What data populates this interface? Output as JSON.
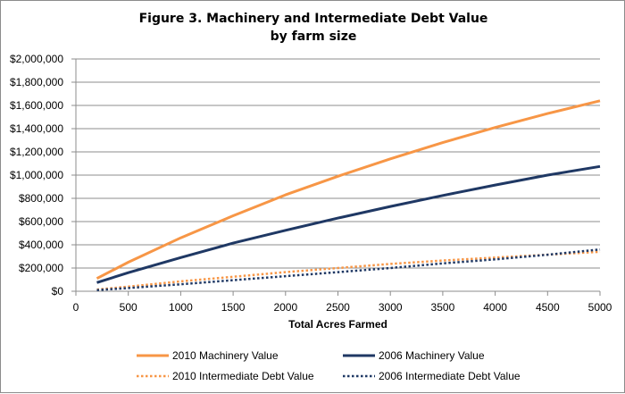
{
  "chart_data": {
    "type": "line",
    "title_line1": "Figure 3. Machinery and Intermediate Debt Value",
    "title_line2": "by farm size",
    "xlabel": "Total Acres Farmed",
    "ylabel": "",
    "xlim": [
      0,
      5000
    ],
    "ylim": [
      0,
      2000000
    ],
    "x_ticks": [
      0,
      500,
      1000,
      1500,
      2000,
      2500,
      3000,
      3500,
      4000,
      4500,
      5000
    ],
    "y_ticks": [
      0,
      200000,
      400000,
      600000,
      800000,
      1000000,
      1200000,
      1400000,
      1600000,
      1800000,
      2000000
    ],
    "y_tick_labels": [
      "$0",
      "$200,000",
      "$400,000",
      "$600,000",
      "$800,000",
      "$1,000,000",
      "$1,200,000",
      "$1,400,000",
      "$1,600,000",
      "$1,800,000",
      "$2,000,000"
    ],
    "grid": "horizontal",
    "legend_position": "bottom",
    "x": [
      200,
      500,
      1000,
      1500,
      2000,
      2500,
      3000,
      3500,
      4000,
      4500,
      5000
    ],
    "series": [
      {
        "name": "2010 Machinery Value",
        "color": "#f79646",
        "style": "solid",
        "values": [
          110000,
          250000,
          460000,
          650000,
          830000,
          990000,
          1140000,
          1280000,
          1410000,
          1530000,
          1640000
        ]
      },
      {
        "name": "2006 Machinery Value",
        "color": "#1f3864",
        "style": "solid",
        "values": [
          75000,
          160000,
          290000,
          415000,
          525000,
          630000,
          730000,
          825000,
          915000,
          1000000,
          1075000
        ]
      },
      {
        "name": "2010 Intermediate Debt Value",
        "color": "#f79646",
        "style": "dotted",
        "values": [
          15000,
          40000,
          85000,
          125000,
          165000,
          200000,
          235000,
          265000,
          290000,
          315000,
          340000
        ]
      },
      {
        "name": "2006 Intermediate Debt Value",
        "color": "#1f3864",
        "style": "dotted",
        "values": [
          10000,
          28000,
          60000,
          95000,
          130000,
          165000,
          200000,
          240000,
          275000,
          315000,
          360000
        ]
      }
    ]
  }
}
